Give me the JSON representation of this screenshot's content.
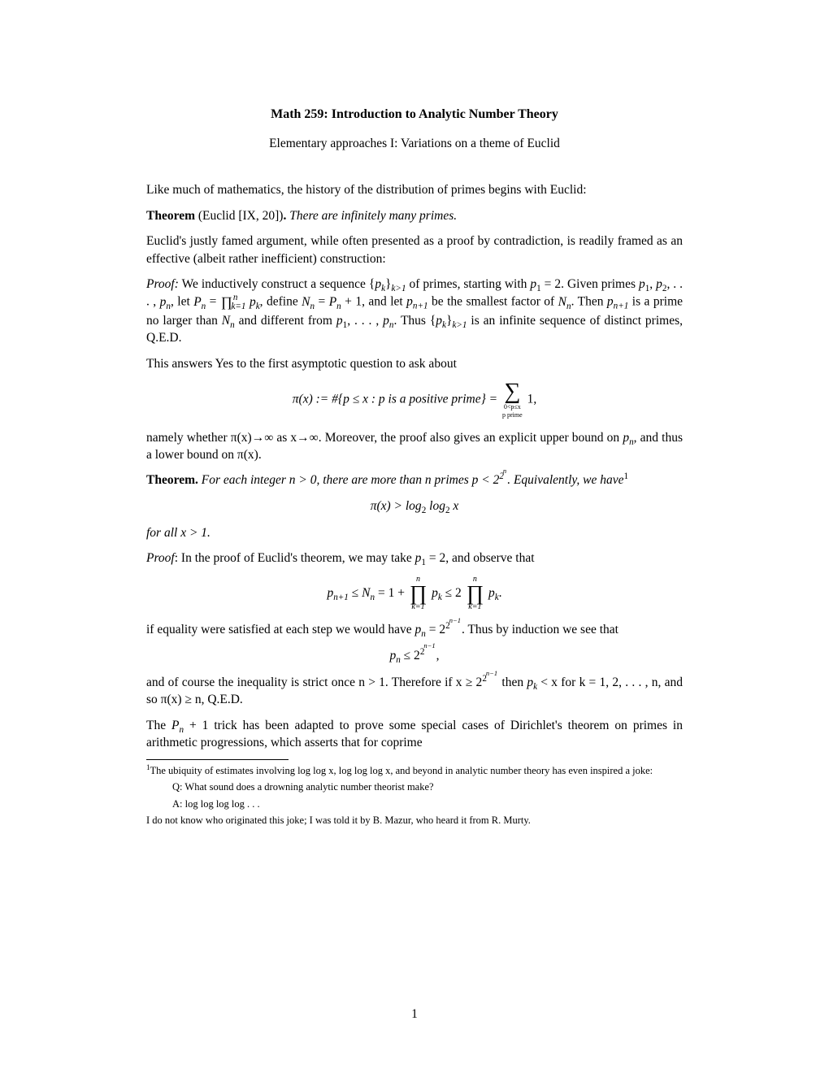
{
  "title": "Math 259: Introduction to Analytic Number Theory",
  "subtitle": "Elementary approaches I: Variations on a theme of Euclid",
  "p1": "Like much of mathematics, the history of the distribution of primes begins with Euclid:",
  "thm1_head": "Theorem",
  "thm1_cite": " (Euclid [IX, 20])",
  "thm1_body": "There are infinitely many primes.",
  "p2": "Euclid's justly famed argument, while often presented as a proof by contradiction, is readily framed as an effective (albeit rather inefficient) construction:",
  "proof1_head": "Proof:",
  "proof1_a": " We inductively construct a sequence {",
  "proof1_b": " of primes, starting with ",
  "proof1_c": ". Given primes ",
  "proof1_d": ", let ",
  "proof1_e": ", define ",
  "proof1_f": ", and let ",
  "proof1_g": " be the smallest factor of ",
  "proof1_h": ". Then ",
  "proof1_i": " is a prime no larger than ",
  "proof1_j": " and different from ",
  "proof1_k": ". Thus {",
  "proof1_l": " is an infinite sequence of distinct primes, Q.E.D.",
  "p3": "This answers Yes to the first asymptotic question to ask about",
  "eq1_lhs": "π(x) := #{p ≤ x : p is a positive prime} = ",
  "eq1_sub1": "0<p≤x",
  "eq1_sub2": "p prime",
  "eq1_rhs": " 1,",
  "p4a": "namely whether π(x)→∞ as x→∞. Moreover, the proof also gives an explicit upper bound on ",
  "p4b": ", and thus a lower bound on π(x).",
  "thm2_head": "Theorem.",
  "thm2_a": "For each integer n > 0, there are more than n primes p < 2",
  "thm2_b": ". Equivalently, we have",
  "eq2": "π(x) > log",
  "eq2b": " log",
  "eq2c": " x",
  "p5": "for all x > 1.",
  "proof2_head": "Proof",
  "proof2_a": ": In the proof of Euclid's theorem, we may take ",
  "proof2_b": " = 2, and observe that",
  "eq3_a": " ≤ ",
  "eq3_b": " = 1 + ",
  "eq3_c": " ≤ 2",
  "eq3_d": ".",
  "p6a": "if equality were satisfied at each step we would have ",
  "p6b": ". Thus by induction we see that",
  "eq4_end": ",",
  "p7a": "and of course the inequality is strict once n > 1. Therefore if x ≥ 2",
  "p7b": " then ",
  "p7c": " < x for k = 1, 2, . . . , n, and so π(x) ≥ n, Q.E.D.",
  "p8a": "The ",
  "p8b": " + 1 trick has been adapted to prove some special cases of Dirichlet's theorem on primes in arithmetic progressions, which asserts that for coprime",
  "fn1_a": "The ubiquity of estimates involving log log x, log log log x, and beyond in analytic number theory has even inspired a joke:",
  "fn1_q": "Q: What sound does a drowning analytic number theorist make?",
  "fn1_ans": "A: log log log log . . .",
  "fn1_b": "I do not know who originated this joke; I was told it by B. Mazur, who heard it from R. Murty.",
  "pagenum": "1"
}
